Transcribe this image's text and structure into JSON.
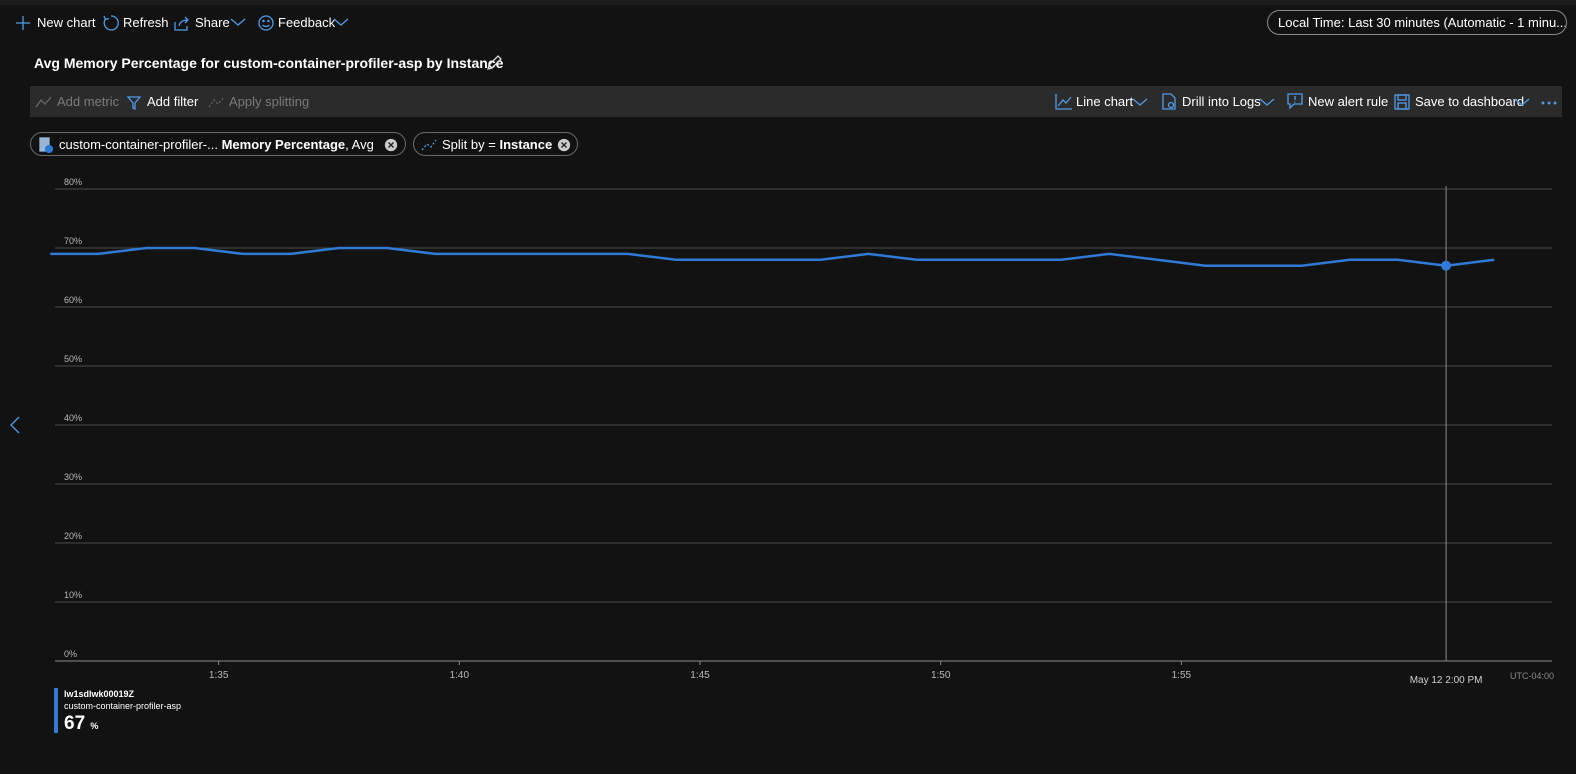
{
  "toolbar": {
    "new_chart": "New chart",
    "refresh": "Refresh",
    "share": "Share",
    "feedback": "Feedback",
    "time_range": "Local Time: Last 30 minutes (Automatic - 1 minu..."
  },
  "chart_title": "Avg Memory Percentage for custom-container-profiler-asp by Instance",
  "command_bar": {
    "add_metric": "Add metric",
    "add_filter": "Add filter",
    "apply_splitting": "Apply splitting",
    "line_chart": "Line chart",
    "drill_into_logs": "Drill into Logs",
    "new_alert_rule": "New alert rule",
    "save_to_dashboard": "Save to dashboard"
  },
  "pills": {
    "resource": "custom-container-profiler-...",
    "metric": "Memory Percentage",
    "aggregation": ", Avg",
    "split_label": "Split by =",
    "split_value": "Instance"
  },
  "chart_data": {
    "type": "line",
    "x": [
      31.5,
      32.5,
      33.5,
      34.5,
      35.5,
      36.5,
      37.5,
      38.5,
      39.5,
      40.5,
      41.5,
      42.5,
      43.5,
      44.5,
      45.5,
      46.5,
      47.5,
      48.5,
      49.5,
      50.5,
      51.5,
      52.5,
      53.5,
      54.5,
      55.5,
      56.5,
      57.5,
      58.5,
      59.5,
      60.5,
      61.5
    ],
    "series": [
      {
        "name": "lw1sdlwk00019Z",
        "resource": "custom-container-profiler-asp",
        "color": "#2f7ad6",
        "values": [
          69,
          69,
          70,
          70,
          69,
          69,
          70,
          70,
          69,
          69,
          69,
          69,
          69,
          68,
          68,
          68,
          68,
          69,
          68,
          68,
          68,
          68,
          69,
          68,
          67,
          67,
          67,
          68,
          68,
          67,
          68
        ]
      }
    ],
    "xlim": [
      31.6,
      62.7
    ],
    "ylim": [
      0,
      80
    ],
    "xticks": [
      {
        "value": 35,
        "label": "1:35"
      },
      {
        "value": 40,
        "label": "1:40"
      },
      {
        "value": 45,
        "label": "1:45"
      },
      {
        "value": 50,
        "label": "1:50"
      },
      {
        "value": 55,
        "label": "1:55"
      }
    ],
    "yticks": [
      {
        "value": 0,
        "label": "0%"
      },
      {
        "value": 10,
        "label": "10%"
      },
      {
        "value": 20,
        "label": "20%"
      },
      {
        "value": 30,
        "label": "30%"
      },
      {
        "value": 40,
        "label": "40%"
      },
      {
        "value": 50,
        "label": "50%"
      },
      {
        "value": 60,
        "label": "60%"
      },
      {
        "value": 70,
        "label": "70%"
      },
      {
        "value": 80,
        "label": "80%"
      }
    ],
    "grid": true,
    "timezone": "UTC-04:00",
    "cursor": {
      "x": 60.5,
      "label": "May 12 2:00 PM"
    },
    "legend": {
      "value": 67,
      "unit": "%"
    }
  }
}
